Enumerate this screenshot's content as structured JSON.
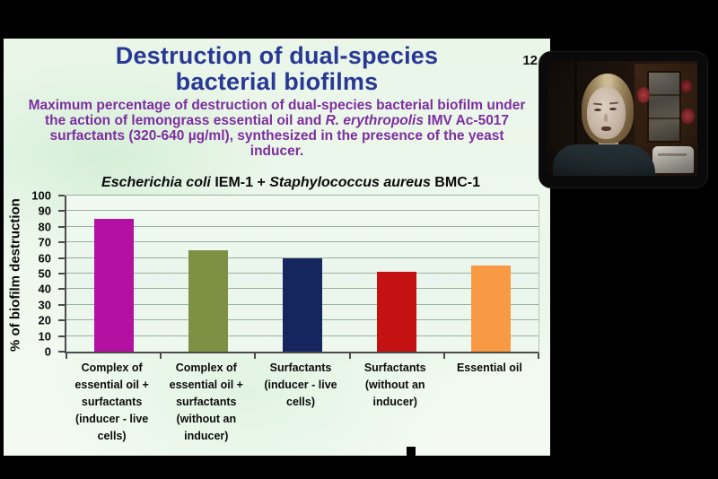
{
  "slide": {
    "number": "12",
    "title": {
      "line1": "Destruction of dual-species",
      "line2": "bacterial biofilms",
      "color": "#293894"
    },
    "subtitle": {
      "part1": "Maximum percentage of destruction of dual-species bacterial biofilm under the action of lemongrass essential oil and ",
      "part2_italic": "R. erythropolis",
      "part3": " IMV Ac-5017 surfactants (320-640 µg/ml), synthesized in the presence of the yeast inducer.",
      "color": "#7d2ea0"
    }
  },
  "chart_data": {
    "type": "bar",
    "title": "Escherichia coli IEM-1 + Staphylococcus aureus BMC-1",
    "title_parts": [
      {
        "text": "Escherichia coli",
        "italic": true
      },
      {
        "text": " IEM-1 + ",
        "italic": false
      },
      {
        "text": "Staphylococcus aureus",
        "italic": true
      },
      {
        "text": " BMC-1",
        "italic": false
      }
    ],
    "categories": [
      "Complex of\nessential oil +\nsurfactants\n(inducer - live\ncells)",
      "Complex of\nessential oil +\nsurfactants\n(without an\ninducer)",
      "Surfactants\n(inducer - live\ncells)",
      "Surfactants\n(without an\ninducer)",
      "Essential oil"
    ],
    "values": [
      85,
      65,
      60,
      51,
      55
    ],
    "bar_colors": [
      "#b410a2",
      "#7e9043",
      "#15265f",
      "#c41112",
      "#f79a43"
    ],
    "xlabel": "",
    "ylabel": "% of biofilm destruction",
    "ylim": [
      0,
      100
    ],
    "yticks": [
      0,
      10,
      20,
      30,
      40,
      50,
      60,
      70,
      80,
      90,
      100
    ],
    "grid": true,
    "legend": "none"
  },
  "webcam": {
    "description": "presenter webcam video feed"
  }
}
